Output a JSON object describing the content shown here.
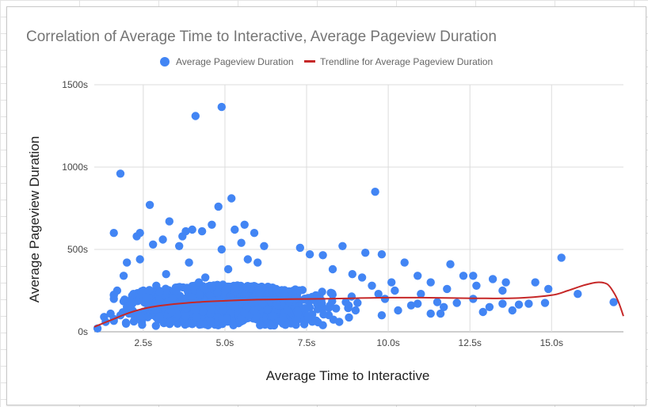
{
  "chart_data": {
    "type": "scatter",
    "title": "Correlation of Average Time to Interactive, Average Pageview Duration",
    "xlabel": "Average Time to Interactive",
    "ylabel": "Average Pageview Duration",
    "xlim": [
      1.0,
      17.2
    ],
    "ylim": [
      0,
      1500
    ],
    "x_ticks": [
      2.5,
      5.0,
      7.5,
      10.0,
      12.5,
      15.0
    ],
    "x_tick_labels": [
      "2.5s",
      "5.0s",
      "7.5s",
      "10.0s",
      "12.5s",
      "15.0s"
    ],
    "y_ticks": [
      0,
      500,
      1000,
      1500
    ],
    "y_tick_labels": [
      "0s",
      "500s",
      "1000s",
      "1500s"
    ],
    "grid": true,
    "legend_position": "top",
    "series": [
      {
        "name": "Average Pageview Duration",
        "kind": "points",
        "color": "#4285f4",
        "points": [
          [
            4.9,
            1365
          ],
          [
            4.1,
            1310
          ],
          [
            1.8,
            960
          ],
          [
            9.6,
            850
          ],
          [
            5.2,
            810
          ],
          [
            3.7,
            580
          ],
          [
            4.8,
            760
          ],
          [
            2.7,
            770
          ],
          [
            1.6,
            600
          ],
          [
            2.3,
            580
          ],
          [
            2.4,
            600
          ],
          [
            3.3,
            670
          ],
          [
            4.6,
            650
          ],
          [
            5.6,
            650
          ],
          [
            5.9,
            600
          ],
          [
            5.3,
            620
          ],
          [
            4.3,
            610
          ],
          [
            4.0,
            620
          ],
          [
            3.8,
            610
          ],
          [
            3.1,
            560
          ],
          [
            2.8,
            530
          ],
          [
            5.5,
            540
          ],
          [
            6.2,
            520
          ],
          [
            3.6,
            520
          ],
          [
            4.9,
            500
          ],
          [
            8.6,
            520
          ],
          [
            9.8,
            470
          ],
          [
            9.3,
            480
          ],
          [
            7.3,
            510
          ],
          [
            7.6,
            470
          ],
          [
            8.0,
            465
          ],
          [
            11.9,
            410
          ],
          [
            15.3,
            450
          ],
          [
            2.0,
            420
          ],
          [
            2.4,
            440
          ],
          [
            1.9,
            340
          ],
          [
            1.6,
            200
          ],
          [
            1.5,
            110
          ],
          [
            1.3,
            90
          ],
          [
            1.1,
            20
          ],
          [
            1.35,
            60
          ],
          [
            10.5,
            420
          ],
          [
            10.9,
            340
          ],
          [
            11.3,
            300
          ],
          [
            11.8,
            260
          ],
          [
            12.3,
            340
          ],
          [
            12.6,
            340
          ],
          [
            12.7,
            280
          ],
          [
            13.2,
            320
          ],
          [
            13.6,
            300
          ],
          [
            13.5,
            250
          ],
          [
            14.5,
            300
          ],
          [
            14.9,
            260
          ],
          [
            14.3,
            170
          ],
          [
            14.8,
            175
          ],
          [
            15.8,
            230
          ],
          [
            16.9,
            180
          ],
          [
            13.1,
            150
          ],
          [
            13.8,
            130
          ],
          [
            12.6,
            200
          ],
          [
            12.1,
            175
          ],
          [
            11.6,
            110
          ],
          [
            11.3,
            110
          ],
          [
            10.3,
            130
          ],
          [
            10.1,
            300
          ],
          [
            10.7,
            160
          ],
          [
            11.0,
            230
          ],
          [
            11.7,
            150
          ],
          [
            10.9,
            170
          ],
          [
            11.5,
            180
          ],
          [
            12.9,
            120
          ],
          [
            13.5,
            170
          ],
          [
            14.0,
            165
          ],
          [
            9.8,
            100
          ],
          [
            9.0,
            130
          ],
          [
            8.5,
            60
          ],
          [
            8.0,
            40
          ],
          [
            7.2,
            70
          ],
          [
            6.9,
            130
          ],
          [
            6.5,
            200
          ],
          [
            4.2,
            300
          ],
          [
            4.4,
            330
          ],
          [
            2.9,
            280
          ],
          [
            3.2,
            350
          ],
          [
            3.9,
            420
          ],
          [
            5.7,
            440
          ],
          [
            5.1,
            380
          ],
          [
            6.0,
            420
          ],
          [
            8.3,
            380
          ],
          [
            8.9,
            350
          ],
          [
            9.2,
            330
          ],
          [
            9.5,
            280
          ],
          [
            9.7,
            230
          ],
          [
            10.2,
            250
          ],
          [
            9.9,
            200
          ],
          [
            2.2,
            230
          ],
          [
            2.5,
            250
          ],
          [
            2.0,
            150
          ],
          [
            1.8,
            100
          ],
          [
            1.7,
            250
          ],
          [
            2.1,
            190
          ],
          [
            2.6,
            210
          ],
          [
            3.0,
            240
          ],
          [
            3.4,
            200
          ],
          [
            3.5,
            250
          ]
        ],
        "dense_cluster": {
          "x_range": [
            1.6,
            9.6
          ],
          "y_range": [
            0,
            330
          ],
          "approx_points": 1100,
          "center_x": 5.0
        }
      },
      {
        "name": "Trendline for Average Pageview Duration",
        "kind": "trendline",
        "color": "#c62828",
        "points": [
          [
            1.0,
            30
          ],
          [
            1.5,
            70
          ],
          [
            2.0,
            110
          ],
          [
            2.5,
            140
          ],
          [
            3.0,
            158
          ],
          [
            4.0,
            178
          ],
          [
            5.0,
            188
          ],
          [
            6.0,
            195
          ],
          [
            7.0,
            198
          ],
          [
            8.0,
            200
          ],
          [
            9.0,
            204
          ],
          [
            10.0,
            207
          ],
          [
            11.0,
            207
          ],
          [
            12.0,
            205
          ],
          [
            13.0,
            203
          ],
          [
            14.0,
            205
          ],
          [
            15.0,
            222
          ],
          [
            15.5,
            250
          ],
          [
            16.0,
            283
          ],
          [
            16.4,
            300
          ],
          [
            16.7,
            290
          ],
          [
            16.9,
            240
          ],
          [
            17.05,
            180
          ],
          [
            17.2,
            95
          ]
        ]
      }
    ]
  }
}
